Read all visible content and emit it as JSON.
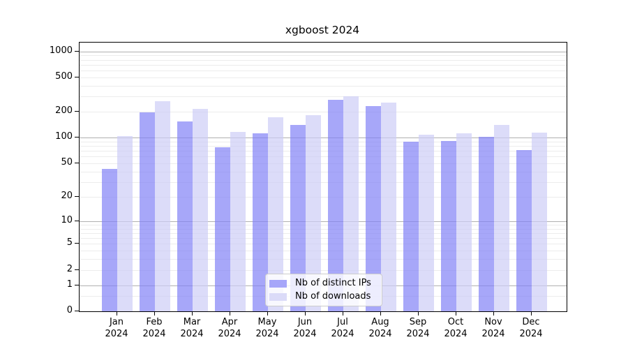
{
  "title": "xgboost 2024",
  "colors": {
    "distinct_ips": "#a6a6f9",
    "downloads": "#dbdbf8",
    "distinct_ips_rgba": "rgba(129,129,247,0.7)",
    "downloads_rgba": "rgba(205,205,247,0.7)",
    "grid_major": "#b0b0b0",
    "grid_minor": "#ececec",
    "axis": "#000000"
  },
  "y_axis": {
    "tick_values": [
      0,
      1,
      2,
      5,
      10,
      20,
      50,
      100,
      200,
      500,
      1000
    ],
    "tick_labels": [
      "0",
      "1",
      "2",
      "5",
      "10",
      "20",
      "50",
      "100",
      "200",
      "500",
      "1000"
    ]
  },
  "x_axis": {
    "months": [
      "Jan",
      "Feb",
      "Mar",
      "Apr",
      "May",
      "Jun",
      "Jul",
      "Aug",
      "Sep",
      "Oct",
      "Nov",
      "Dec"
    ],
    "year": "2024"
  },
  "chart_data": {
    "type": "bar",
    "title": "xgboost 2024",
    "categories": [
      "Jan 2024",
      "Feb 2024",
      "Mar 2024",
      "Apr 2024",
      "May 2024",
      "Jun 2024",
      "Jul 2024",
      "Aug 2024",
      "Sep 2024",
      "Oct 2024",
      "Nov 2024",
      "Dec 2024"
    ],
    "series": [
      {
        "name": "Nb of distinct IPs",
        "values": [
          43,
          197,
          154,
          77,
          113,
          140,
          276,
          235,
          90,
          92,
          103,
          72
        ]
      },
      {
        "name": "Nb of downloads",
        "values": [
          105,
          267,
          216,
          116,
          172,
          182,
          300,
          256,
          108,
          113,
          141,
          115
        ]
      }
    ],
    "yscale": "log10(value+1)",
    "yticks": [
      0,
      1,
      2,
      5,
      10,
      20,
      50,
      100,
      200,
      500,
      1000
    ],
    "minor_gridlines": [
      0.5,
      2,
      3,
      4,
      5,
      6,
      7,
      8,
      9,
      20,
      30,
      40,
      50,
      60,
      70,
      80,
      90,
      200,
      300,
      400,
      500,
      600,
      700,
      800,
      900
    ],
    "major_gridlines": [
      1,
      10,
      100,
      1000
    ],
    "ylim": [
      0,
      1270
    ],
    "grid": true,
    "legend_position": "lower center"
  }
}
